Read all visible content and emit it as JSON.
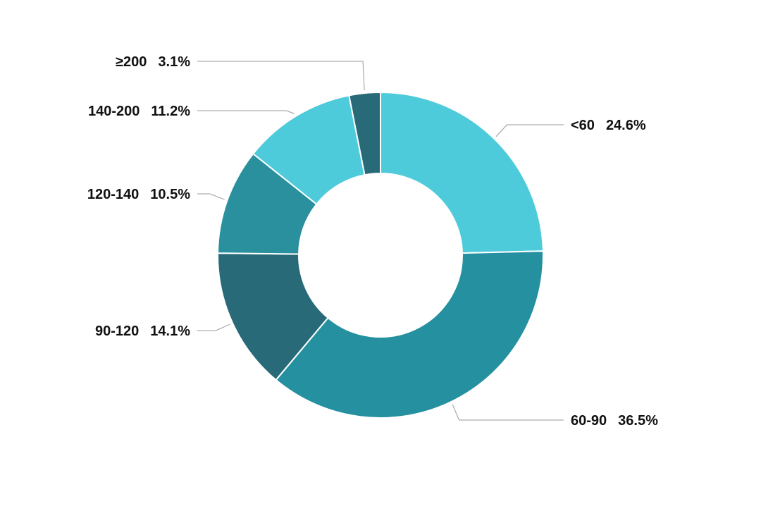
{
  "chart_data": {
    "type": "pie",
    "style": "donut",
    "title": "",
    "categories": [
      "<60",
      "60-90",
      "90-120",
      "120-140",
      "140-200",
      "≥200"
    ],
    "values": [
      24.6,
      36.5,
      14.1,
      10.5,
      11.2,
      3.1
    ],
    "value_labels": [
      "24.6%",
      "36.5%",
      "14.1%",
      "10.5%",
      "11.2%",
      "3.1%"
    ],
    "colors": [
      "#4ecbdb",
      "#2590a0",
      "#286a78",
      "#2a909e",
      "#4ecbdb",
      "#286a78"
    ],
    "legend": "none",
    "direction": "clockwise from top"
  }
}
